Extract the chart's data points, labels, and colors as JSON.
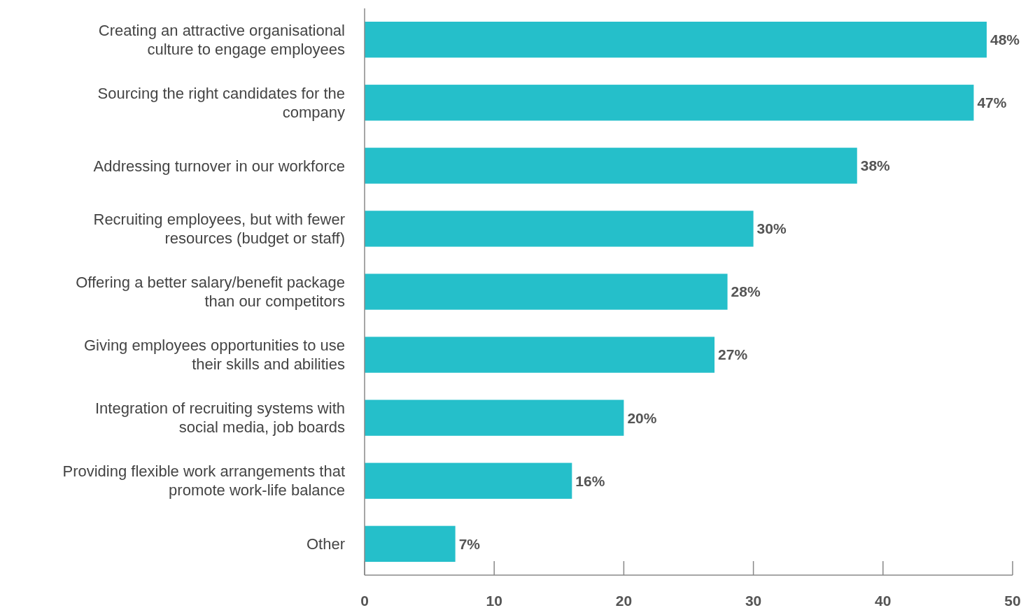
{
  "chart_data": {
    "type": "bar",
    "orientation": "horizontal",
    "categories": [
      "Creating an attractive organisational culture to engage employees",
      "Sourcing the right candidates for the company",
      "Addressing turnover in our workforce",
      "Recruiting employees, but with fewer resources (budget or staff)",
      "Offering a better salary/benefit package than our competitors",
      "Giving employees opportunities to use their skills and abilities",
      "Integration of recruiting systems with social media, job boards",
      "Providing flexible work arrangements that promote work-life balance",
      "Other"
    ],
    "values": [
      48,
      47,
      38,
      30,
      28,
      27,
      20,
      16,
      7
    ],
    "value_labels": [
      "48%",
      "47%",
      "38%",
      "30%",
      "28%",
      "27%",
      "20%",
      "16%",
      "7%"
    ],
    "color": "#25bfca",
    "xlim": [
      0,
      50
    ],
    "xticks": [
      0,
      10,
      20,
      30,
      40,
      50
    ],
    "grid": false
  }
}
